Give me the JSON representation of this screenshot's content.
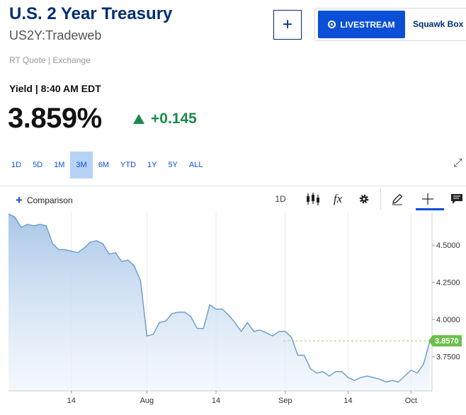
{
  "header": {
    "title": "U.S. 2 Year Treasury",
    "symbol": "US2Y:Tradeweb",
    "quote_type": "RT Quote | Exchange",
    "yield_label": "Yield | 8:40 AM EDT",
    "price": "3.859%",
    "change": "+0.145"
  },
  "actions": {
    "plus_label": "+",
    "livestream_label": "LIVESTREAM",
    "squawk_label": "Squawk Box"
  },
  "ranges": [
    "1D",
    "5D",
    "1M",
    "3M",
    "6M",
    "YTD",
    "1Y",
    "5Y",
    "ALL"
  ],
  "active_range": "3M",
  "toolbar": {
    "comparison_label": "Comparison",
    "interval_label": "1D",
    "fx_label": "fx"
  },
  "colors": {
    "brand_navy": "#002d72",
    "accent_blue": "#0a4fd6",
    "positive_green": "#1b8a4a",
    "active_range_bg": "#b7d2f7",
    "line_color": "#6f9fd0",
    "badge_green": "#6cc04a"
  },
  "icons": [
    "plus-icon",
    "radio-icon",
    "expand-icon",
    "candlestick-icon",
    "fx-icon",
    "gear-icon",
    "pencil-icon",
    "crosshair-icon",
    "comment-icon"
  ],
  "chart_data": {
    "type": "area",
    "x_tick_labels": [
      "14",
      "Aug",
      "14",
      "Sep",
      "14",
      "Oct"
    ],
    "y_tick_labels": [
      "4.5000",
      "4.2500",
      "4.0000",
      "3.7500"
    ],
    "ylim": [
      3.52,
      4.72
    ],
    "grid": "vertical",
    "last_value_label": "3.8570",
    "last_value": 3.857,
    "series": [
      {
        "x": [
          "Jul 1",
          "Jul 2",
          "Jul 3",
          "Jul 5",
          "Jul 8",
          "Jul 9",
          "Jul 10",
          "Jul 11",
          "Jul 12",
          "Jul 15",
          "Jul 16",
          "Jul 17",
          "Jul 18",
          "Jul 19",
          "Jul 22",
          "Jul 23",
          "Jul 24",
          "Jul 25",
          "Jul 26",
          "Jul 29",
          "Jul 30",
          "Jul 31",
          "Aug 1",
          "Aug 2",
          "Aug 5",
          "Aug 6",
          "Aug 7",
          "Aug 8",
          "Aug 9",
          "Aug 12",
          "Aug 13",
          "Aug 14",
          "Aug 15",
          "Aug 16",
          "Aug 19",
          "Aug 20",
          "Aug 21",
          "Aug 22",
          "Aug 23",
          "Aug 26",
          "Aug 27",
          "Aug 28",
          "Aug 29",
          "Aug 30",
          "Sep 3",
          "Sep 4",
          "Sep 5",
          "Sep 6",
          "Sep 9",
          "Sep 10",
          "Sep 11",
          "Sep 12",
          "Sep 13",
          "Sep 16",
          "Sep 17",
          "Sep 18",
          "Sep 19",
          "Sep 20",
          "Sep 23",
          "Sep 24",
          "Sep 25",
          "Sep 26",
          "Sep 27",
          "Sep 30",
          "Oct 1",
          "Oct 2",
          "Oct 3",
          "Oct 4"
        ],
        "values": [
          4.71,
          4.69,
          4.62,
          4.64,
          4.63,
          4.64,
          4.63,
          4.51,
          4.47,
          4.47,
          4.46,
          4.45,
          4.48,
          4.52,
          4.53,
          4.51,
          4.44,
          4.45,
          4.39,
          4.4,
          4.36,
          4.26,
          3.89,
          3.9,
          3.98,
          3.99,
          4.04,
          4.05,
          4.05,
          4.02,
          3.94,
          3.94,
          4.1,
          4.07,
          4.07,
          4.03,
          3.98,
          3.92,
          3.98,
          3.92,
          3.93,
          3.91,
          3.89,
          3.92,
          3.92,
          3.88,
          3.76,
          3.76,
          3.67,
          3.64,
          3.65,
          3.62,
          3.65,
          3.65,
          3.61,
          3.59,
          3.61,
          3.62,
          3.61,
          3.6,
          3.58,
          3.59,
          3.58,
          3.62,
          3.66,
          3.64,
          3.7,
          3.857
        ]
      }
    ]
  }
}
